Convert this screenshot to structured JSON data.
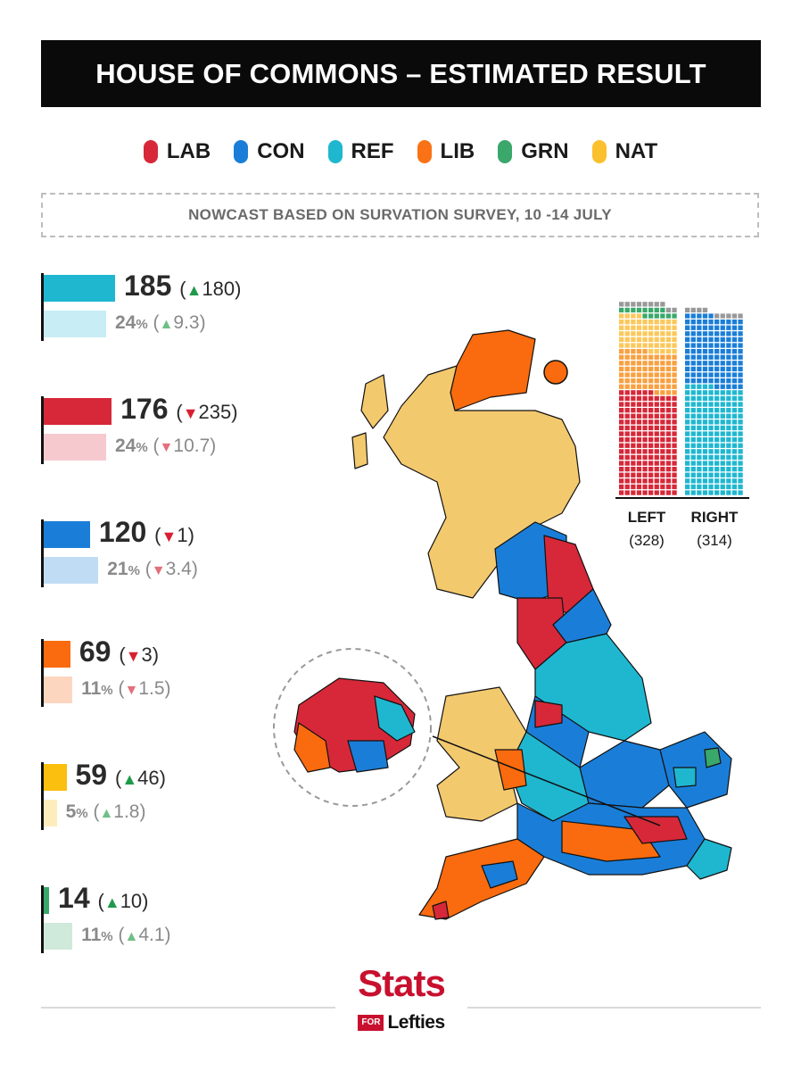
{
  "title": "HOUSE OF COMMONS – ESTIMATED RESULT",
  "subtitle": "NOWCAST BASED ON SURVATION SURVEY, 10 -14 JULY",
  "legend": [
    {
      "label": "LAB",
      "color": "#d62839"
    },
    {
      "label": "CON",
      "color": "#1a7ed8"
    },
    {
      "label": "REF",
      "color": "#1fb7d0"
    },
    {
      "label": "LIB",
      "color": "#f97316"
    },
    {
      "label": "GRN",
      "color": "#3aa86b"
    },
    {
      "label": "NAT",
      "color": "#fbc02d"
    }
  ],
  "chart_data": [
    {
      "type": "bar",
      "series": [
        {
          "party": "REF",
          "seats": 185,
          "seat_change": "180",
          "seat_dir": "up",
          "vote_pct": "24",
          "vote_change": "9.3",
          "vote_dir": "up",
          "seat_color": "#1fb7d0",
          "vote_color": "#c8edf4"
        },
        {
          "party": "LAB",
          "seats": 176,
          "seat_change": "235",
          "seat_dir": "down",
          "vote_pct": "24",
          "vote_change": "10.7",
          "vote_dir": "down",
          "seat_color": "#d62839",
          "vote_color": "#f6c9cf"
        },
        {
          "party": "CON",
          "seats": 120,
          "seat_change": "1",
          "seat_dir": "down",
          "vote_pct": "21",
          "vote_change": "3.4",
          "vote_dir": "down",
          "seat_color": "#1a7ed8",
          "vote_color": "#bfdcf4"
        },
        {
          "party": "LIB",
          "seats": 69,
          "seat_change": "3",
          "seat_dir": "down",
          "vote_pct": "11",
          "vote_change": "1.5",
          "vote_dir": "down",
          "seat_color": "#f96b0e",
          "vote_color": "#fdd6c0"
        },
        {
          "party": "NAT",
          "seats": 59,
          "seat_change": "46",
          "seat_dir": "up",
          "vote_pct": "5",
          "vote_change": "1.8",
          "vote_dir": "up",
          "seat_color": "#fbbf0f",
          "vote_color": "#fdedbd"
        },
        {
          "party": "GRN",
          "seats": 14,
          "seat_change": "10",
          "seat_dir": "up",
          "vote_pct": "11",
          "vote_change": "4.1",
          "vote_dir": "up",
          "seat_color": "#3aa86b",
          "vote_color": "#cfe9da"
        }
      ]
    },
    {
      "type": "waffle",
      "blocs": [
        {
          "label": "LEFT",
          "count": "(328)",
          "composition": [
            {
              "party": "LAB",
              "seats": 176,
              "color": "#d62839"
            },
            {
              "party": "LIB",
              "seats": 69,
              "color": "#f9a03f"
            },
            {
              "party": "NAT",
              "seats": 59,
              "color": "#fbc85a"
            },
            {
              "party": "GRN",
              "seats": 14,
              "color": "#3aa86b"
            },
            {
              "party": "OTH",
              "seats": 10,
              "color": "#999999"
            }
          ]
        },
        {
          "label": "RIGHT",
          "count": "(314)",
          "composition": [
            {
              "party": "REF",
              "seats": 185,
              "color": "#1fb7d0"
            },
            {
              "party": "CON",
              "seats": 120,
              "color": "#1a7ed8"
            },
            {
              "party": "OTH",
              "seats": 9,
              "color": "#999999"
            }
          ]
        }
      ]
    }
  ],
  "map_colors": {
    "scotland": "#f3c96e",
    "wales": "#f3c96e",
    "highlands": "#f96b0e",
    "lab": "#d62839",
    "con": "#1a7ed8",
    "ref": "#1fb7d0",
    "lib": "#f96b0e",
    "grn": "#3aa86b"
  },
  "logo": {
    "main": "Stats",
    "for": "FOR",
    "sub": "Lefties"
  }
}
